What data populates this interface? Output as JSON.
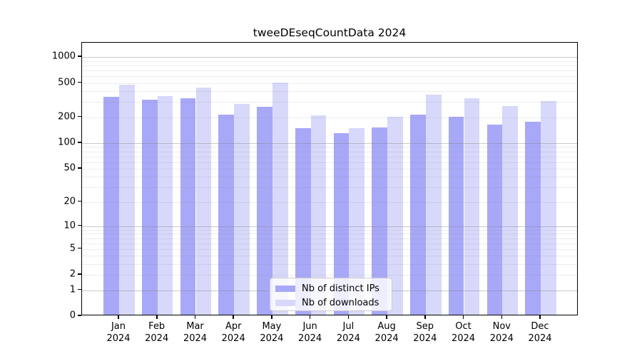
{
  "title": "tweeDEseqCountData 2024",
  "chart_data": {
    "type": "bar",
    "title": "tweeDEseqCountData 2024",
    "xlabel": "",
    "ylabel": "",
    "scale": "log10(1+x)",
    "ylim": [
      0,
      1466
    ],
    "grid": "on",
    "legend_position": "bottom-center-inside",
    "categories": [
      "Jan 2024",
      "Feb 2024",
      "Mar 2024",
      "Apr 2024",
      "May 2024",
      "Jun 2024",
      "Jul 2024",
      "Aug 2024",
      "Sep 2024",
      "Oct 2024",
      "Nov 2024",
      "Dec 2024"
    ],
    "yticks": [
      1000,
      500,
      200,
      100,
      50,
      20,
      10,
      5,
      2,
      1,
      0
    ],
    "series": [
      {
        "name": "Nb of distinct IPs",
        "color": "#a8a8f8",
        "values": [
          330,
          308,
          318,
          208,
          255,
          145,
          126,
          146,
          206,
          194,
          159,
          170
        ]
      },
      {
        "name": "Nb of downloads",
        "color": "#d8d8fa",
        "values": [
          460,
          339,
          425,
          273,
          490,
          204,
          144,
          194,
          350,
          320,
          260,
          298
        ]
      }
    ]
  }
}
